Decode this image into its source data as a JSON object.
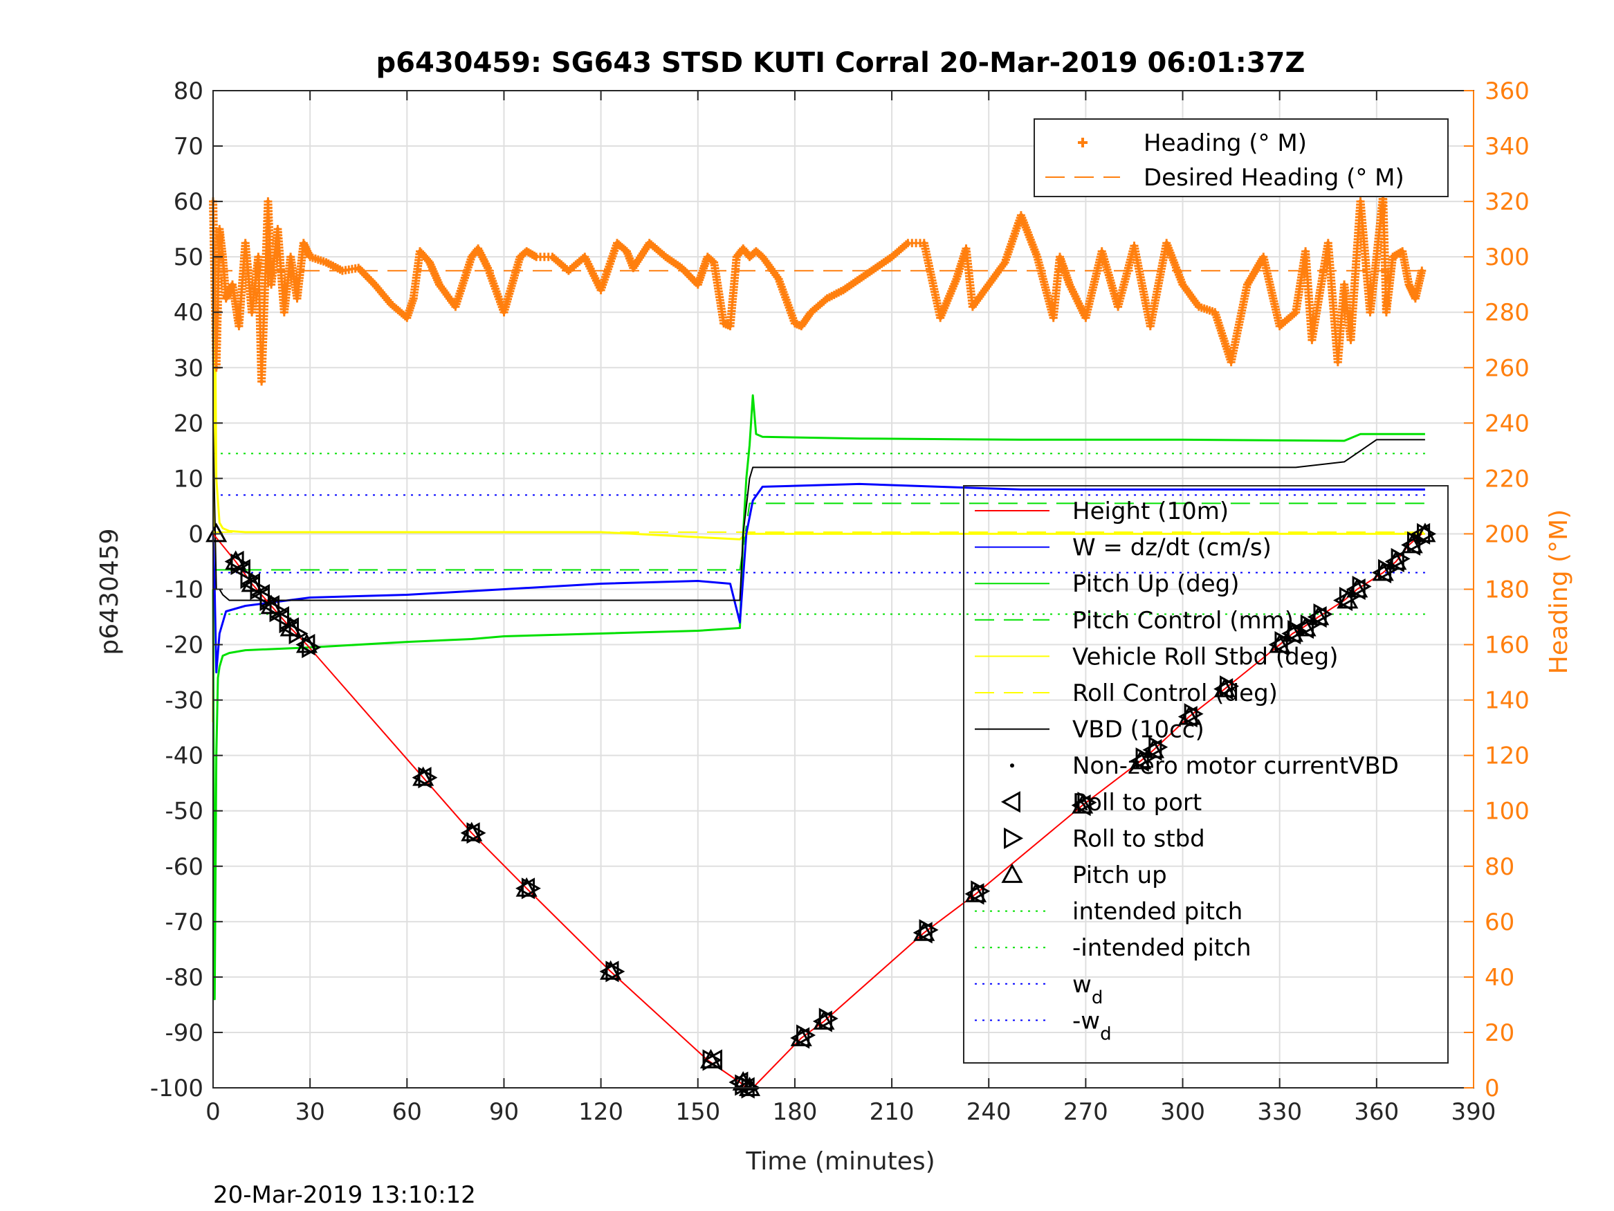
{
  "chart_data": {
    "type": "line",
    "title": "p6430459: SG643 STSD KUTI Corral 20-Mar-2019 06:01:37Z",
    "xlabel": "Time (minutes)",
    "ylabel": "p6430459",
    "y2label": "Heading (°M)",
    "timestamp": "20-Mar-2019 13:10:12",
    "xlim": [
      0,
      390
    ],
    "ylim": [
      -100,
      80
    ],
    "y2lim": [
      0,
      360
    ],
    "xticks": [
      0,
      30,
      60,
      90,
      120,
      150,
      180,
      210,
      240,
      270,
      300,
      330,
      360,
      390
    ],
    "yticks": [
      80,
      70,
      60,
      50,
      40,
      30,
      20,
      10,
      0,
      -10,
      -20,
      -30,
      -40,
      -50,
      -60,
      -70,
      -80,
      -90,
      -100
    ],
    "y2ticks": [
      360,
      340,
      320,
      300,
      280,
      260,
      240,
      220,
      200,
      180,
      160,
      140,
      120,
      100,
      80,
      60,
      40,
      20,
      0
    ],
    "grid": true,
    "colors": {
      "height": "#ff0000",
      "w": "#0000ff",
      "pitch": "#00e000",
      "roll": "#ffff00",
      "vbd": "#000000",
      "heading": "#ff7f0e"
    },
    "legend_heading": {
      "placement": "top-right",
      "entries": [
        "Heading (° M)",
        "Desired Heading (° M)"
      ]
    },
    "legend_main": {
      "placement": "right",
      "entries": [
        {
          "label": "Height (10m)",
          "style": "line",
          "color": "#ff0000"
        },
        {
          "label": "W = dz/dt (cm/s)",
          "style": "line",
          "color": "#0000ff"
        },
        {
          "label": "Pitch Up (deg)",
          "style": "line",
          "color": "#00e000"
        },
        {
          "label": "Pitch Control (mm)",
          "style": "dash",
          "color": "#00e000"
        },
        {
          "label": "Vehicle Roll Stbd (deg)",
          "style": "line",
          "color": "#ffff00"
        },
        {
          "label": "Roll Control (deg)",
          "style": "dash",
          "color": "#ffff00"
        },
        {
          "label": "VBD (10cc)",
          "style": "line",
          "color": "#000000"
        },
        {
          "label": "Non-zero motor currentVBD",
          "style": "dot",
          "color": "#000000"
        },
        {
          "label": "Roll to port",
          "style": "tri-left",
          "color": "#000000"
        },
        {
          "label": "Roll to stbd",
          "style": "tri-right",
          "color": "#000000"
        },
        {
          "label": "Pitch up",
          "style": "tri-up",
          "color": "#000000"
        },
        {
          "label": "intended pitch",
          "style": "dotted",
          "color": "#00e000"
        },
        {
          "label": "-intended pitch",
          "style": "dotted",
          "color": "#00e000"
        },
        {
          "label": "w",
          "sub": "d",
          "style": "dotted",
          "color": "#0000ff"
        },
        {
          "label": "-w",
          "sub": "d",
          "style": "dotted",
          "color": "#0000ff"
        }
      ]
    },
    "series": [
      {
        "name": "Height (10m)",
        "x": [
          0,
          7,
          12,
          18,
          24,
          29,
          65,
          80,
          97,
          123,
          153,
          163,
          165,
          167,
          182,
          189,
          220,
          236,
          269,
          287,
          291,
          302,
          313,
          330,
          334,
          337,
          342,
          350,
          352,
          354,
          362,
          366,
          370,
          374
        ],
        "y": [
          0,
          -5,
          -9,
          -13,
          -17,
          -20,
          -44,
          -54,
          -64,
          -79,
          -95,
          -99,
          -100,
          -100,
          -91,
          -88,
          -72,
          -65,
          -49,
          -41,
          -39,
          -33,
          -28,
          -20,
          -18,
          -17,
          -15,
          -12,
          -11,
          -10,
          -7,
          -5,
          -2,
          0
        ]
      },
      {
        "name": "VBD (10cc)",
        "x": [
          0,
          0.5,
          1,
          2,
          3,
          5,
          10,
          30,
          60,
          90,
          120,
          150,
          163,
          164,
          166,
          167,
          168,
          335,
          350,
          355,
          360,
          365,
          375
        ],
        "y": [
          20,
          5,
          -10,
          -10,
          -11,
          -12,
          -12,
          -12,
          -12,
          -12,
          -12,
          -12,
          -12,
          0,
          10,
          12,
          12,
          12,
          13,
          15,
          17,
          17,
          17
        ]
      },
      {
        "name": "Pitch Up (deg)",
        "x": [
          0,
          0.5,
          1,
          1.5,
          2,
          3,
          5,
          10,
          30,
          60,
          80,
          90,
          120,
          150,
          163,
          164,
          165,
          166,
          167,
          168,
          170,
          200,
          250,
          300,
          350,
          355,
          375
        ],
        "y": [
          -10,
          -84,
          -40,
          -26,
          -24,
          -22,
          -21.5,
          -21,
          -20.5,
          -19.5,
          -19,
          -18.5,
          -18,
          -17.5,
          -17,
          0,
          10,
          16,
          25,
          18,
          17.5,
          17.2,
          17,
          17,
          16.8,
          18,
          18
        ]
      },
      {
        "name": "W = dz/dt (cm/s)",
        "x": [
          0,
          0.5,
          1,
          2,
          4,
          10,
          30,
          60,
          90,
          120,
          150,
          160,
          163,
          165,
          167,
          170,
          200,
          250,
          300,
          350,
          375
        ],
        "y": [
          0,
          -10,
          -25,
          -18,
          -14,
          -13,
          -11.5,
          -11,
          -10,
          -9,
          -8.5,
          -9,
          -16,
          0,
          6,
          8.5,
          9,
          8,
          8,
          8,
          8
        ]
      },
      {
        "name": "Vehicle Roll Stbd (deg)",
        "x": [
          0,
          0.5,
          1,
          2,
          3,
          5,
          10,
          60,
          120,
          163,
          165,
          167,
          200,
          250,
          300,
          350,
          375
        ],
        "y": [
          -34,
          50,
          10,
          2,
          1,
          0.5,
          0.3,
          0.3,
          0.3,
          -1,
          0,
          0,
          0,
          0,
          0,
          0,
          0
        ]
      },
      {
        "name": "intended pitch",
        "x": [
          0,
          375
        ],
        "y": [
          14.5,
          14.5
        ]
      },
      {
        "name": "-intended pitch",
        "x": [
          0,
          375
        ],
        "y": [
          -14.5,
          -14.5
        ]
      },
      {
        "name": "w_d",
        "x": [
          0,
          375
        ],
        "y": [
          7,
          7
        ]
      },
      {
        "name": "-w_d",
        "x": [
          0,
          375
        ],
        "y": [
          -7,
          -7
        ]
      },
      {
        "name": "Pitch Control (mm)",
        "x": [
          0,
          163,
          166,
          375
        ],
        "y": [
          -6.5,
          -6.5,
          5.5,
          5.5
        ]
      },
      {
        "name": "Roll Control (deg)",
        "x": [
          0,
          375
        ],
        "y": [
          0.3,
          0.3
        ]
      },
      {
        "name": "Desired Heading (° M)",
        "axis": "right",
        "x": [
          0,
          375
        ],
        "y": [
          295,
          295
        ]
      },
      {
        "name": "Heading (° M)",
        "axis": "right",
        "x": [
          0,
          1,
          2,
          3,
          4,
          6,
          8,
          10,
          12,
          14,
          15,
          17,
          18,
          20,
          22,
          24,
          26,
          28,
          30,
          35,
          40,
          45,
          50,
          55,
          60,
          62,
          64,
          67,
          70,
          75,
          80,
          82,
          85,
          90,
          95,
          97,
          100,
          105,
          110,
          115,
          120,
          125,
          128,
          130,
          135,
          140,
          145,
          150,
          153,
          155,
          158,
          160,
          162,
          164,
          166,
          168,
          170,
          175,
          180,
          182,
          185,
          190,
          195,
          200,
          205,
          210,
          215,
          220,
          225,
          230,
          233,
          235,
          240,
          245,
          250,
          255,
          260,
          262,
          265,
          270,
          275,
          280,
          285,
          290,
          295,
          300,
          305,
          310,
          315,
          320,
          325,
          330,
          335,
          338,
          340,
          345,
          348,
          350,
          352,
          355,
          358,
          360,
          362,
          363,
          365,
          368,
          370,
          372,
          374
        ],
        "y": [
          320,
          260,
          310,
          300,
          285,
          290,
          275,
          305,
          280,
          300,
          255,
          320,
          290,
          310,
          280,
          300,
          285,
          305,
          300,
          298,
          295,
          296,
          290,
          283,
          278,
          285,
          302,
          298,
          290,
          282,
          300,
          303,
          296,
          280,
          300,
          302,
          300,
          300,
          295,
          300,
          288,
          305,
          302,
          296,
          305,
          300,
          296,
          290,
          300,
          298,
          276,
          275,
          300,
          303,
          300,
          302,
          300,
          292,
          276,
          275,
          280,
          285,
          288,
          292,
          296,
          300,
          305,
          305,
          278,
          292,
          303,
          282,
          290,
          298,
          315,
          300,
          278,
          300,
          290,
          278,
          302,
          282,
          304,
          275,
          305,
          290,
          282,
          280,
          262,
          290,
          300,
          275,
          280,
          302,
          270,
          305,
          262,
          290,
          270,
          320,
          280,
          300,
          322,
          280,
          300,
          302,
          290,
          285,
          295
        ]
      }
    ],
    "markers": {
      "roll_to_port": {
        "x": [
          7,
          9,
          12,
          15,
          18,
          21,
          24,
          29,
          65,
          80,
          97,
          123,
          155,
          163,
          165,
          182,
          189,
          220,
          236,
          269,
          287,
          291,
          302,
          313,
          330,
          334,
          338,
          342,
          350,
          354,
          362,
          366,
          371,
          374
        ],
        "y": [
          -5,
          -6.5,
          -9,
          -11,
          -13,
          -15,
          -17,
          -20,
          -44,
          -54,
          -64,
          -79,
          -95,
          -99,
          -100,
          -91,
          -88,
          -72,
          -65,
          -49,
          -41,
          -39,
          -33,
          -28,
          -20,
          -18,
          -17,
          -15,
          -12,
          -10,
          -7,
          -5,
          -2,
          0
        ]
      },
      "roll_to_stbd": {
        "x": [
          8,
          11,
          14,
          17,
          20,
          23,
          26,
          30,
          66,
          81,
          98,
          124,
          154,
          164,
          166,
          183,
          190,
          221,
          237,
          270,
          288,
          292,
          303,
          314,
          331,
          335,
          339,
          343,
          351,
          355,
          363,
          367,
          372,
          375
        ],
        "y": [
          -5.5,
          -8,
          -10,
          -12,
          -14,
          -16,
          -18,
          -20.5,
          -44,
          -54,
          -64,
          -79,
          -95,
          -99.5,
          -100,
          -90.5,
          -87.5,
          -71.5,
          -64.5,
          -48.5,
          -40.5,
          -38.5,
          -32.5,
          -27.5,
          -19.5,
          -17.5,
          -16.5,
          -14.5,
          -11.5,
          -9.5,
          -6.5,
          -4.5,
          -1.5,
          0
        ]
      },
      "pitch_up": {
        "x": [
          1,
          7,
          12,
          18,
          24,
          29,
          65,
          80,
          97,
          123,
          154,
          164,
          166,
          182,
          189,
          220,
          236,
          269,
          287,
          291,
          302,
          313,
          330,
          334,
          338,
          342,
          351,
          354,
          362,
          366,
          371,
          375
        ],
        "y": [
          0,
          -5,
          -9,
          -13,
          -17,
          -20,
          -44,
          -54,
          -64,
          -79,
          -95,
          -99,
          -100,
          -91,
          -88,
          -72,
          -65,
          -49,
          -41,
          -39,
          -33,
          -28,
          -20,
          -18,
          -17,
          -15,
          -12,
          -10,
          -7,
          -5,
          -2,
          0
        ]
      }
    }
  }
}
